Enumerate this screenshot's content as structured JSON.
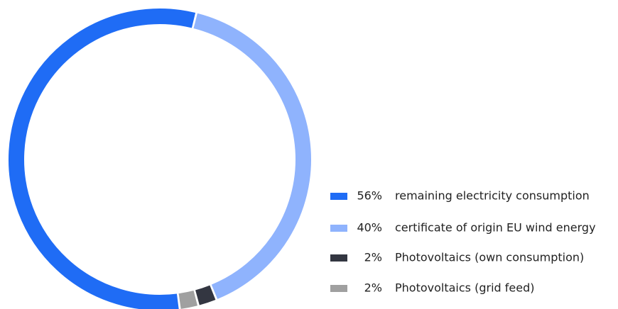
{
  "chart_data": {
    "type": "donut",
    "categories": [
      "remaining electricity consumption",
      "certificate of origin EU wind energy",
      "Photovoltaics (own consumption)",
      "Photovoltaics (grid feed)"
    ],
    "values": [
      56,
      40,
      2,
      2
    ],
    "value_labels": [
      "56%",
      "40%",
      "2%",
      "2%"
    ],
    "colors": [
      "#1f6cf5",
      "#8fb3fd",
      "#333641",
      "#a0a0a0"
    ]
  }
}
